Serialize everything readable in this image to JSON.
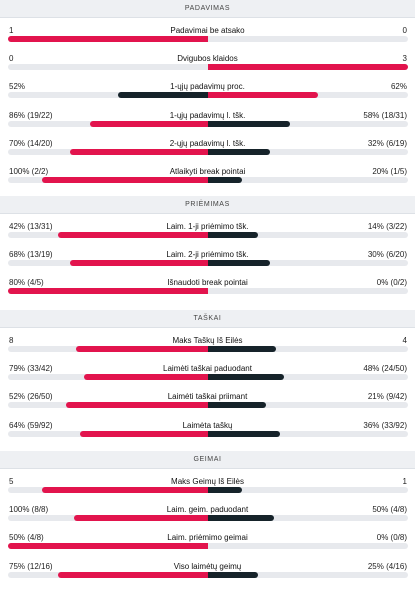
{
  "colors": {
    "home_win": "#e2144d",
    "away_win": "#e2144d",
    "loser": "#16232a",
    "track": "#e7e9ed"
  },
  "sections": [
    {
      "title": "PADAVIMAS",
      "rows": [
        {
          "label": "Padavimai be atsako",
          "left": "1",
          "right": "0",
          "home_ratio": 1.0,
          "away_ratio": 0.0,
          "winner": "home"
        },
        {
          "label": "Dvigubos klaidos",
          "left": "0",
          "right": "3",
          "home_ratio": 0.0,
          "away_ratio": 1.0,
          "winner": "away"
        },
        {
          "label": "1-ųjų padavimų proc.",
          "left": "52%",
          "right": "62%",
          "home_ratio": 0.45,
          "away_ratio": 0.55,
          "winner": "away"
        },
        {
          "label": "1-ųjų padavimų l. tšk.",
          "left": "86% (19/22)",
          "right": "58% (18/31)",
          "home_ratio": 0.59,
          "away_ratio": 0.41,
          "winner": "home"
        },
        {
          "label": "2-ųjų padavimų l. tšk.",
          "left": "70% (14/20)",
          "right": "32% (6/19)",
          "home_ratio": 0.69,
          "away_ratio": 0.31,
          "winner": "home"
        },
        {
          "label": "Atlaikyti break pointai",
          "left": "100% (2/2)",
          "right": "20% (1/5)",
          "home_ratio": 0.83,
          "away_ratio": 0.17,
          "winner": "home"
        }
      ]
    },
    {
      "title": "PRIĖMIMAS",
      "rows": [
        {
          "label": "Laim. 1-ji priėmimo tšk.",
          "left": "42% (13/31)",
          "right": "14% (3/22)",
          "home_ratio": 0.75,
          "away_ratio": 0.25,
          "winner": "home"
        },
        {
          "label": "Laim. 2-ji priėmimo tšk.",
          "left": "68% (13/19)",
          "right": "30% (6/20)",
          "home_ratio": 0.69,
          "away_ratio": 0.31,
          "winner": "home"
        },
        {
          "label": "Išnaudoti break pointai",
          "left": "80% (4/5)",
          "right": "0% (0/2)",
          "home_ratio": 1.0,
          "away_ratio": 0.0,
          "winner": "home"
        }
      ]
    },
    {
      "title": "TAŠKAI",
      "rows": [
        {
          "label": "Maks Taškų Iš Eilės",
          "left": "8",
          "right": "4",
          "home_ratio": 0.66,
          "away_ratio": 0.34,
          "winner": "home"
        },
        {
          "label": "Laimėti taškai paduodant",
          "left": "79% (33/42)",
          "right": "48% (24/50)",
          "home_ratio": 0.62,
          "away_ratio": 0.38,
          "winner": "home"
        },
        {
          "label": "Laimėti taškai priimant",
          "left": "52% (26/50)",
          "right": "21% (9/42)",
          "home_ratio": 0.71,
          "away_ratio": 0.29,
          "winner": "home"
        },
        {
          "label": "Laimėta taškų",
          "left": "64% (59/92)",
          "right": "36% (33/92)",
          "home_ratio": 0.64,
          "away_ratio": 0.36,
          "winner": "home"
        }
      ]
    },
    {
      "title": "GEIMAI",
      "rows": [
        {
          "label": "Maks Geimų Iš Eilės",
          "left": "5",
          "right": "1",
          "home_ratio": 0.83,
          "away_ratio": 0.17,
          "winner": "home"
        },
        {
          "label": "Laim. geim. paduodant",
          "left": "100% (8/8)",
          "right": "50% (4/8)",
          "home_ratio": 0.67,
          "away_ratio": 0.33,
          "winner": "home"
        },
        {
          "label": "Laim. priėmimo geimai",
          "left": "50% (4/8)",
          "right": "0% (0/8)",
          "home_ratio": 1.0,
          "away_ratio": 0.0,
          "winner": "home"
        },
        {
          "label": "Viso laimėtų geimų",
          "left": "75% (12/16)",
          "right": "25% (4/16)",
          "home_ratio": 0.75,
          "away_ratio": 0.25,
          "winner": "home"
        }
      ]
    }
  ]
}
